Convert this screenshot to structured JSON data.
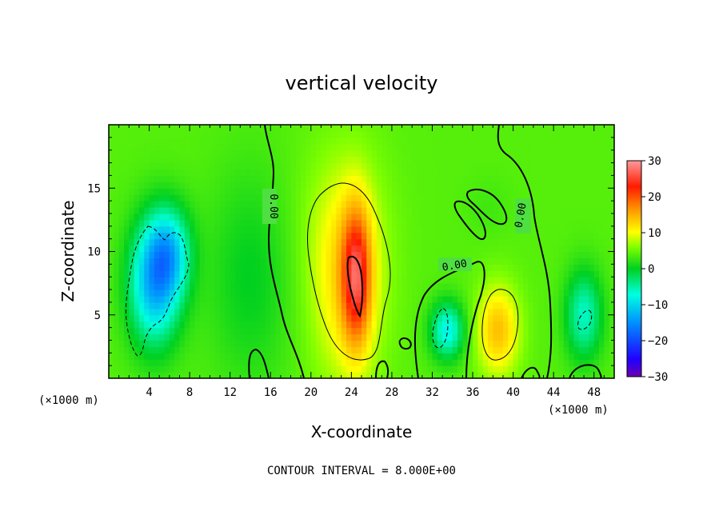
{
  "chart_data": {
    "type": "heatmap",
    "title": "vertical velocity",
    "xlabel": "X-coordinate",
    "ylabel": "Z-coordinate",
    "x_unit": "(×1000 m)",
    "xlim": [
      0,
      50
    ],
    "ylim": [
      0,
      20
    ],
    "x_ticks": [
      4,
      8,
      12,
      16,
      20,
      24,
      28,
      32,
      36,
      40,
      44,
      48
    ],
    "y_ticks": [
      5,
      10,
      15
    ],
    "x_tick_labels": [
      "4",
      "8",
      "12",
      "16",
      "20",
      "24",
      "28",
      "32",
      "36",
      "40",
      "44",
      "48"
    ],
    "y_tick_labels": [
      "5",
      "10",
      "15"
    ],
    "colorbar": {
      "min": -30,
      "max": 30,
      "ticks": [
        30,
        20,
        10,
        0,
        -10,
        -20,
        -30
      ],
      "tick_labels": [
        "30",
        "20",
        "10",
        "0",
        "−10",
        "−20",
        "−30"
      ]
    },
    "contour_interval_text": "CONTOUR INTERVAL = 8.000E+00",
    "contour_labels": [
      "0.00",
      "0.00",
      "0.00"
    ],
    "field_features": [
      {
        "x": 24.5,
        "z": 8.0,
        "value": 20,
        "sx": 1.0,
        "sz": 3.8
      },
      {
        "x": 23.5,
        "z": 8.0,
        "value": 12,
        "sx": 2.6,
        "sz": 6.0
      },
      {
        "x": 22.5,
        "z": 12.5,
        "value": 5,
        "sx": 3.5,
        "sz": 4.5
      },
      {
        "x": 38.5,
        "z": 3.8,
        "value": 14,
        "sx": 1.5,
        "sz": 2.5
      },
      {
        "x": 37.5,
        "z": 13.5,
        "value": 3,
        "sx": 1.6,
        "sz": 1.6
      },
      {
        "x": 4.5,
        "z": 7.5,
        "value": -12,
        "sx": 1.8,
        "sz": 3.5
      },
      {
        "x": 6.0,
        "z": 10.0,
        "value": -7,
        "sx": 1.5,
        "sz": 2.5
      },
      {
        "x": 33.5,
        "z": 3.8,
        "value": -8,
        "sx": 1.2,
        "sz": 1.6
      },
      {
        "x": 47.0,
        "z": 5.0,
        "value": -6,
        "sx": 1.3,
        "sz": 2.5
      },
      {
        "x": 14.0,
        "z": 8.0,
        "value": 0,
        "sx": 3.0,
        "sz": 6.0
      }
    ],
    "background_value": 4
  }
}
